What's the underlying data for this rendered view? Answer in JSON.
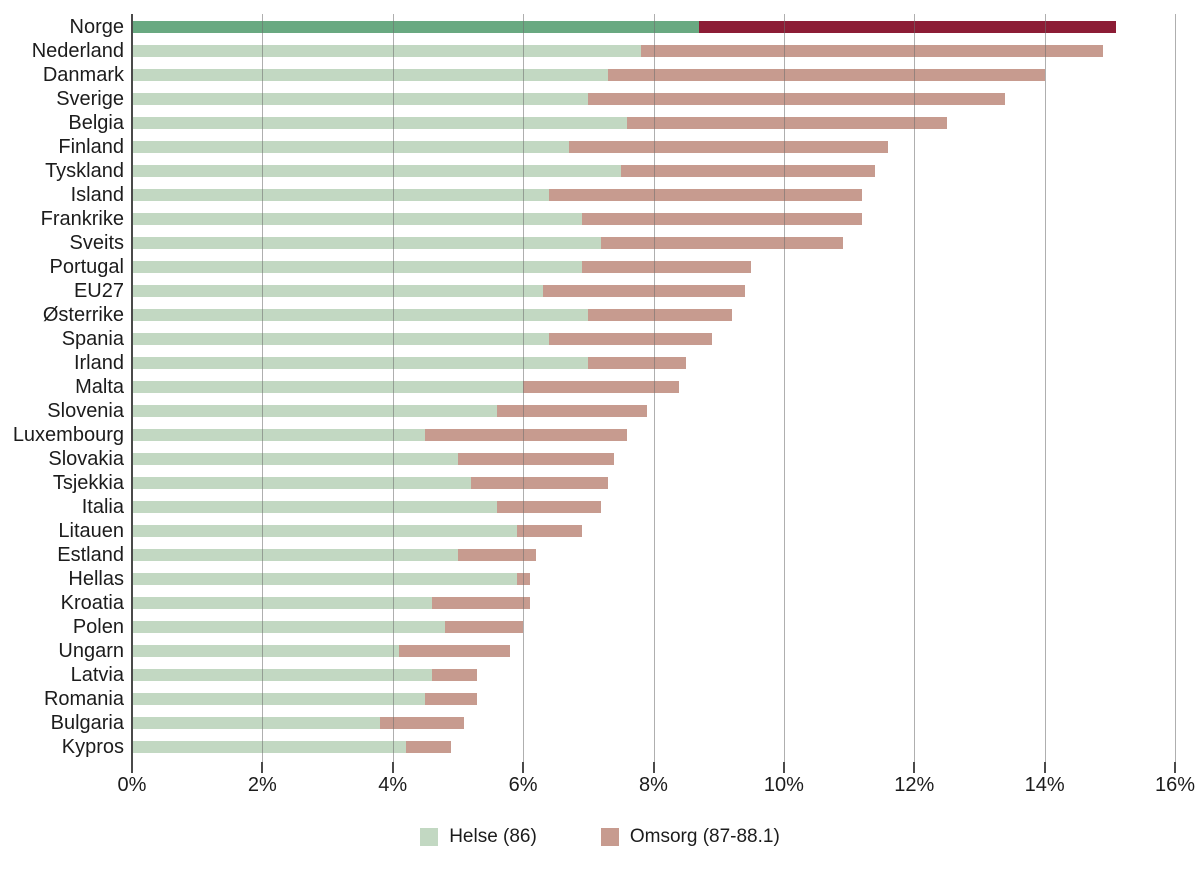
{
  "chart_data": {
    "type": "bar",
    "orientation": "horizontal",
    "stacked": true,
    "title": "",
    "xlabel": "",
    "ylabel": "",
    "grid": "vertical-over-bars",
    "legend_position": "bottom",
    "x_axis": {
      "min": 0,
      "max": 16,
      "step": 2,
      "tick_labels": [
        "0%",
        "2%",
        "4%",
        "6%",
        "8%",
        "10%",
        "12%",
        "14%",
        "16%"
      ]
    },
    "categories": [
      "Norge",
      "Nederland",
      "Danmark",
      "Sverige",
      "Belgia",
      "Finland",
      "Tyskland",
      "Island",
      "Frankrike",
      "Sveits",
      "Portugal",
      "EU27",
      "Østerrike",
      "Spania",
      "Irland",
      "Malta",
      "Slovenia",
      "Luxembourg",
      "Slovakia",
      "Tsjekkia",
      "Italia",
      "Litauen",
      "Estland",
      "Hellas",
      "Kroatia",
      "Polen",
      "Ungarn",
      "Latvia",
      "Romania",
      "Bulgaria",
      "Kypros"
    ],
    "series": [
      {
        "name": "Helse (86)",
        "color": "#c2d8c2",
        "highlight_color": "#69a981",
        "values": [
          8.7,
          7.8,
          7.3,
          7.0,
          7.6,
          6.7,
          7.5,
          6.4,
          6.9,
          7.2,
          6.9,
          6.3,
          7.0,
          6.4,
          7.0,
          6.0,
          5.6,
          4.5,
          5.0,
          5.2,
          5.6,
          5.9,
          5.0,
          5.9,
          4.6,
          4.8,
          4.1,
          4.6,
          4.5,
          3.8,
          4.2
        ]
      },
      {
        "name": "Omsorg (87-88.1)",
        "color": "#c79b8f",
        "highlight_color": "#8c1c35",
        "values": [
          6.4,
          7.1,
          6.7,
          6.4,
          4.9,
          4.9,
          3.9,
          4.8,
          4.3,
          3.7,
          2.6,
          3.1,
          2.2,
          2.5,
          1.5,
          2.4,
          2.3,
          3.1,
          2.4,
          2.1,
          1.6,
          1.0,
          1.2,
          0.2,
          1.5,
          1.2,
          1.7,
          0.7,
          0.8,
          1.3,
          0.7
        ]
      }
    ],
    "highlight_category": "Norge",
    "colors": {
      "gridline": "rgba(110,110,110,0.55)",
      "axis": "#4a4a4a",
      "text": "#1c1c1c",
      "background": "#ffffff"
    },
    "legend": [
      {
        "label": "Helse (86)",
        "color": "#c2d8c2"
      },
      {
        "label": "Omsorg (87-88.1)",
        "color": "#c79b8f"
      }
    ]
  }
}
